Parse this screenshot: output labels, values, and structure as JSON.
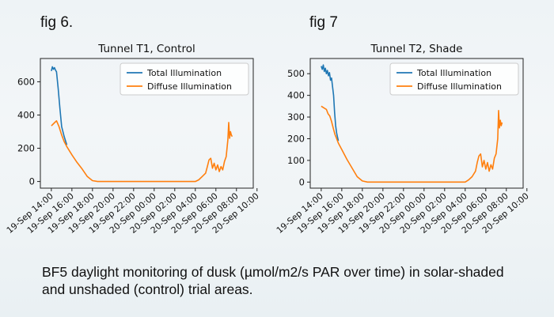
{
  "fig6_label": "fig 6.",
  "fig7_label": "fig 7",
  "caption_line1": "BF5 daylight monitoring of dusk (µmol/m2/s PAR over time) in solar-shaded",
  "caption_line2": "and unshaded (control) trial areas.",
  "colors": {
    "total": "#1f77b4",
    "diffuse": "#ff7f0e"
  },
  "chart_data": [
    {
      "type": "line",
      "title": "Tunnel T1, Control",
      "xlabel": "",
      "ylabel": "",
      "xlim": [
        "19-Sep 12:56",
        "20-Sep 09:38"
      ],
      "ylim": [
        -40,
        740
      ],
      "yticks": [
        0,
        200,
        400,
        600
      ],
      "xticks": [
        "19-Sep 14:00",
        "19-Sep 16:00",
        "19-Sep 18:00",
        "19-Sep 20:00",
        "19-Sep 22:00",
        "20-Sep 00:00",
        "20-Sep 02:00",
        "20-Sep 04:00",
        "20-Sep 06:00",
        "20-Sep 08:00",
        "20-Sep 10:00"
      ],
      "legend_position": "top-right",
      "grid": false,
      "series": [
        {
          "name": "Total Illumination",
          "color": "#1f77b4",
          "points": [
            [
              "19-Sep 14:00",
              665
            ],
            [
              "19-Sep 14:06",
              690
            ],
            [
              "19-Sep 14:12",
              675
            ],
            [
              "19-Sep 14:18",
              685
            ],
            [
              "19-Sep 14:24",
              670
            ],
            [
              "19-Sep 14:30",
              660
            ],
            [
              "19-Sep 14:40",
              560
            ],
            [
              "19-Sep 14:50",
              440
            ],
            [
              "19-Sep 15:00",
              330
            ],
            [
              "19-Sep 15:15",
              270
            ],
            [
              "19-Sep 15:30",
              220
            ]
          ]
        },
        {
          "name": "Diffuse Illumination",
          "color": "#ff7f0e",
          "points": [
            [
              "19-Sep 14:00",
              335
            ],
            [
              "19-Sep 14:15",
              350
            ],
            [
              "19-Sep 14:30",
              365
            ],
            [
              "19-Sep 14:45",
              330
            ],
            [
              "19-Sep 15:00",
              280
            ],
            [
              "19-Sep 15:15",
              240
            ],
            [
              "19-Sep 15:30",
              210
            ],
            [
              "19-Sep 16:00",
              160
            ],
            [
              "19-Sep 16:30",
              115
            ],
            [
              "19-Sep 17:00",
              75
            ],
            [
              "19-Sep 17:30",
              30
            ],
            [
              "19-Sep 18:00",
              5
            ],
            [
              "19-Sep 18:30",
              0
            ],
            [
              "20-Sep 04:00",
              0
            ],
            [
              "20-Sep 04:20",
              10
            ],
            [
              "20-Sep 04:40",
              30
            ],
            [
              "20-Sep 05:00",
              50
            ],
            [
              "20-Sep 05:10",
              90
            ],
            [
              "20-Sep 05:20",
              130
            ],
            [
              "20-Sep 05:30",
              140
            ],
            [
              "20-Sep 05:40",
              80
            ],
            [
              "20-Sep 05:50",
              110
            ],
            [
              "20-Sep 06:00",
              70
            ],
            [
              "20-Sep 06:10",
              100
            ],
            [
              "20-Sep 06:20",
              60
            ],
            [
              "20-Sep 06:30",
              90
            ],
            [
              "20-Sep 06:40",
              70
            ],
            [
              "20-Sep 06:50",
              120
            ],
            [
              "20-Sep 07:00",
              150
            ],
            [
              "20-Sep 07:10",
              250
            ],
            [
              "20-Sep 07:15",
              355
            ],
            [
              "20-Sep 07:20",
              260
            ],
            [
              "20-Sep 07:25",
              300
            ],
            [
              "20-Sep 07:30",
              280
            ],
            [
              "20-Sep 07:35",
              270
            ]
          ]
        }
      ]
    },
    {
      "type": "line",
      "title": "Tunnel T2, Shade",
      "xlabel": "",
      "ylabel": "",
      "xlim": [
        "19-Sep 12:56",
        "20-Sep 09:38"
      ],
      "ylim": [
        -28,
        570
      ],
      "yticks": [
        0,
        100,
        200,
        300,
        400,
        500
      ],
      "xticks": [
        "19-Sep 14:00",
        "19-Sep 16:00",
        "19-Sep 18:00",
        "19-Sep 20:00",
        "19-Sep 22:00",
        "20-Sep 00:00",
        "20-Sep 02:00",
        "20-Sep 04:00",
        "20-Sep 06:00",
        "20-Sep 08:00",
        "20-Sep 10:00"
      ],
      "legend_position": "top-right",
      "grid": false,
      "series": [
        {
          "name": "Total Illumination",
          "color": "#1f77b4",
          "points": [
            [
              "19-Sep 14:00",
              535
            ],
            [
              "19-Sep 14:06",
              520
            ],
            [
              "19-Sep 14:12",
              540
            ],
            [
              "19-Sep 14:18",
              510
            ],
            [
              "19-Sep 14:24",
              525
            ],
            [
              "19-Sep 14:30",
              500
            ],
            [
              "19-Sep 14:36",
              515
            ],
            [
              "19-Sep 14:42",
              490
            ],
            [
              "19-Sep 14:48",
              505
            ],
            [
              "19-Sep 14:54",
              470
            ],
            [
              "19-Sep 15:00",
              480
            ],
            [
              "19-Sep 15:06",
              440
            ],
            [
              "19-Sep 15:12",
              400
            ],
            [
              "19-Sep 15:18",
              320
            ],
            [
              "19-Sep 15:24",
              260
            ],
            [
              "19-Sep 15:30",
              225
            ],
            [
              "19-Sep 15:40",
              190
            ]
          ]
        },
        {
          "name": "Diffuse Illumination",
          "color": "#ff7f0e",
          "points": [
            [
              "19-Sep 14:00",
              350
            ],
            [
              "19-Sep 14:10",
              345
            ],
            [
              "19-Sep 14:20",
              340
            ],
            [
              "19-Sep 14:30",
              335
            ],
            [
              "19-Sep 14:40",
              315
            ],
            [
              "19-Sep 14:50",
              305
            ],
            [
              "19-Sep 15:00",
              280
            ],
            [
              "19-Sep 15:10",
              250
            ],
            [
              "19-Sep 15:20",
              220
            ],
            [
              "19-Sep 15:30",
              200
            ],
            [
              "19-Sep 15:40",
              180
            ],
            [
              "19-Sep 16:00",
              150
            ],
            [
              "19-Sep 16:30",
              105
            ],
            [
              "19-Sep 17:00",
              65
            ],
            [
              "19-Sep 17:30",
              25
            ],
            [
              "19-Sep 18:00",
              5
            ],
            [
              "19-Sep 18:30",
              0
            ],
            [
              "20-Sep 04:00",
              0
            ],
            [
              "20-Sep 04:20",
              10
            ],
            [
              "20-Sep 04:40",
              25
            ],
            [
              "20-Sep 05:00",
              50
            ],
            [
              "20-Sep 05:10",
              90
            ],
            [
              "20-Sep 05:20",
              120
            ],
            [
              "20-Sep 05:30",
              130
            ],
            [
              "20-Sep 05:40",
              70
            ],
            [
              "20-Sep 05:50",
              100
            ],
            [
              "20-Sep 06:00",
              60
            ],
            [
              "20-Sep 06:10",
              90
            ],
            [
              "20-Sep 06:20",
              50
            ],
            [
              "20-Sep 06:30",
              80
            ],
            [
              "20-Sep 06:40",
              60
            ],
            [
              "20-Sep 06:50",
              110
            ],
            [
              "20-Sep 07:00",
              130
            ],
            [
              "20-Sep 07:10",
              200
            ],
            [
              "20-Sep 07:15",
              330
            ],
            [
              "20-Sep 07:20",
              250
            ],
            [
              "20-Sep 07:25",
              285
            ],
            [
              "20-Sep 07:30",
              260
            ],
            [
              "20-Sep 07:35",
              275
            ]
          ]
        }
      ]
    }
  ]
}
